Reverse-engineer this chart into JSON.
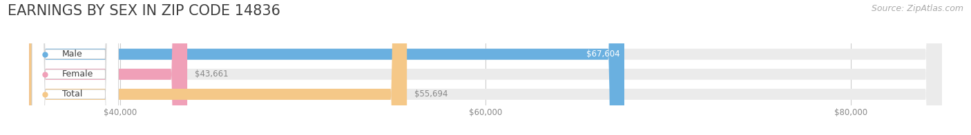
{
  "title": "EARNINGS BY SEX IN ZIP CODE 14836",
  "source": "Source: ZipAtlas.com",
  "categories": [
    "Male",
    "Female",
    "Total"
  ],
  "values": [
    67604,
    43661,
    55694
  ],
  "bar_colors": [
    "#6ab0e0",
    "#f0a0b8",
    "#f5c888"
  ],
  "bar_bg_color": "#ebebeb",
  "label_bg_color": "#ffffff",
  "label_dot_colors": [
    "#6ab0e0",
    "#f0a0b8",
    "#f5c888"
  ],
  "value_labels": [
    "$67,604",
    "$43,661",
    "$55,694"
  ],
  "xmin": 35000,
  "xmax": 85000,
  "xticks": [
    40000,
    60000,
    80000
  ],
  "xtick_labels": [
    "$40,000",
    "$60,000",
    "$80,000"
  ],
  "title_color": "#404040",
  "title_fontsize": 15,
  "bar_height": 0.55,
  "background_color": "#ffffff",
  "grid_color": "#cccccc",
  "value_label_color_inside": "#ffffff",
  "value_label_color_outside": "#888888",
  "source_color": "#aaaaaa",
  "source_fontsize": 9
}
